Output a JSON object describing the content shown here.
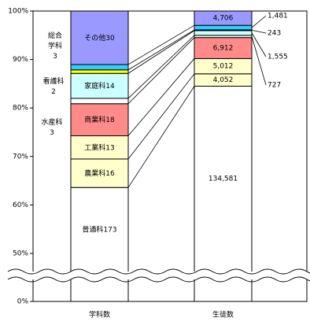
{
  "chart_data": {
    "type": "stacked-percent-bar",
    "categories": [
      "学科数",
      "生徒数"
    ],
    "series": [
      {
        "name": "普通科",
        "color": "#ffffff",
        "values": [
          173,
          134581
        ],
        "value_labels": [
          "173",
          "134,581"
        ]
      },
      {
        "name": "農業科",
        "color": "#ffffcc",
        "values": [
          16,
          4052
        ],
        "value_labels": [
          "16",
          "4,052"
        ]
      },
      {
        "name": "工業科",
        "color": "#ffffcc",
        "values": [
          13,
          5012
        ],
        "value_labels": [
          "13",
          "5,012"
        ]
      },
      {
        "name": "商業科",
        "color": "#ff8a8a",
        "values": [
          18,
          6912
        ],
        "value_labels": [
          "18",
          "6,912"
        ]
      },
      {
        "name": "水産科",
        "color": "#ffffff",
        "values": [
          3,
          727
        ],
        "value_labels": [
          "3",
          "727"
        ]
      },
      {
        "name": "家庭科",
        "color": "#ccffff",
        "values": [
          14,
          1555
        ],
        "value_labels": [
          "14",
          "1,555"
        ]
      },
      {
        "name": "看護科",
        "color": "#ffff00",
        "values": [
          2,
          243
        ],
        "value_labels": [
          "2",
          "243"
        ]
      },
      {
        "name": "総合学科",
        "color": "#33ccff",
        "values": [
          3,
          1481
        ],
        "value_labels": [
          "3",
          "1,481"
        ]
      },
      {
        "name": "その他",
        "color": "#9999ff",
        "values": [
          30,
          4706
        ],
        "value_labels": [
          "30",
          "4,706"
        ]
      }
    ],
    "ylim": [
      0,
      100
    ],
    "yticks": [
      {
        "value": 0,
        "label": "0%"
      },
      {
        "value": 50,
        "label": "50%"
      },
      {
        "value": 60,
        "label": "60%"
      },
      {
        "value": 70,
        "label": "70%"
      },
      {
        "value": 80,
        "label": "80%"
      },
      {
        "value": 90,
        "label": "90%"
      },
      {
        "value": 100,
        "label": "100%"
      }
    ],
    "axis_break": true
  }
}
